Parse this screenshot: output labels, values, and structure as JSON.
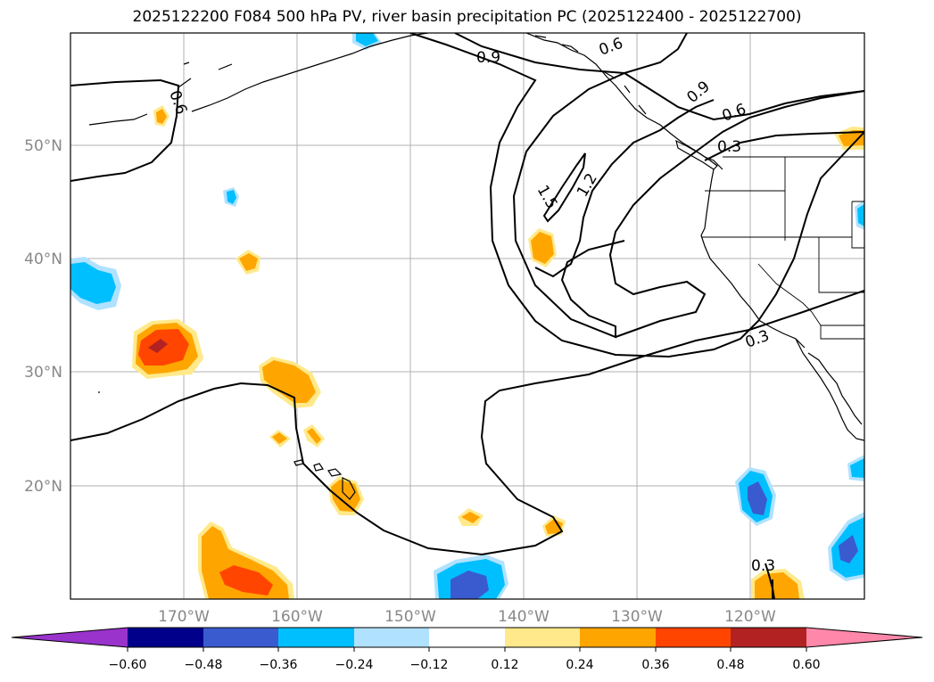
{
  "title": "2025122200 F084 500 hPa PV, river basin precipitation PC (2025122400 - 2025122700)",
  "lon_ticks": [
    "170°W",
    "160°W",
    "150°W",
    "140°W",
    "130°W",
    "120°W"
  ],
  "lat_ticks": [
    "50°N",
    "40°N",
    "30°N",
    "20°N"
  ],
  "contour_labels": [
    "0.6",
    "0.9",
    "0.6",
    "0.9",
    "0.6",
    "0.3",
    "1.2",
    "1.5",
    "0.3",
    "0.3"
  ],
  "colorbar": {
    "ticks": [
      "−0.60",
      "−0.48",
      "−0.36",
      "−0.24",
      "−0.12",
      "0.12",
      "0.24",
      "0.36",
      "0.48",
      "0.60"
    ],
    "colors": [
      "#9933cc",
      "#00008b",
      "#3a5bcf",
      "#00bfff",
      "#b0e2ff",
      "#ffffff",
      "#ffe98a",
      "#ffa500",
      "#ff4500",
      "#b22222",
      "#ff88aa"
    ]
  },
  "colors": {
    "land_outline": "#000000",
    "grid": "#b0b0b0",
    "contour": "#000000"
  }
}
